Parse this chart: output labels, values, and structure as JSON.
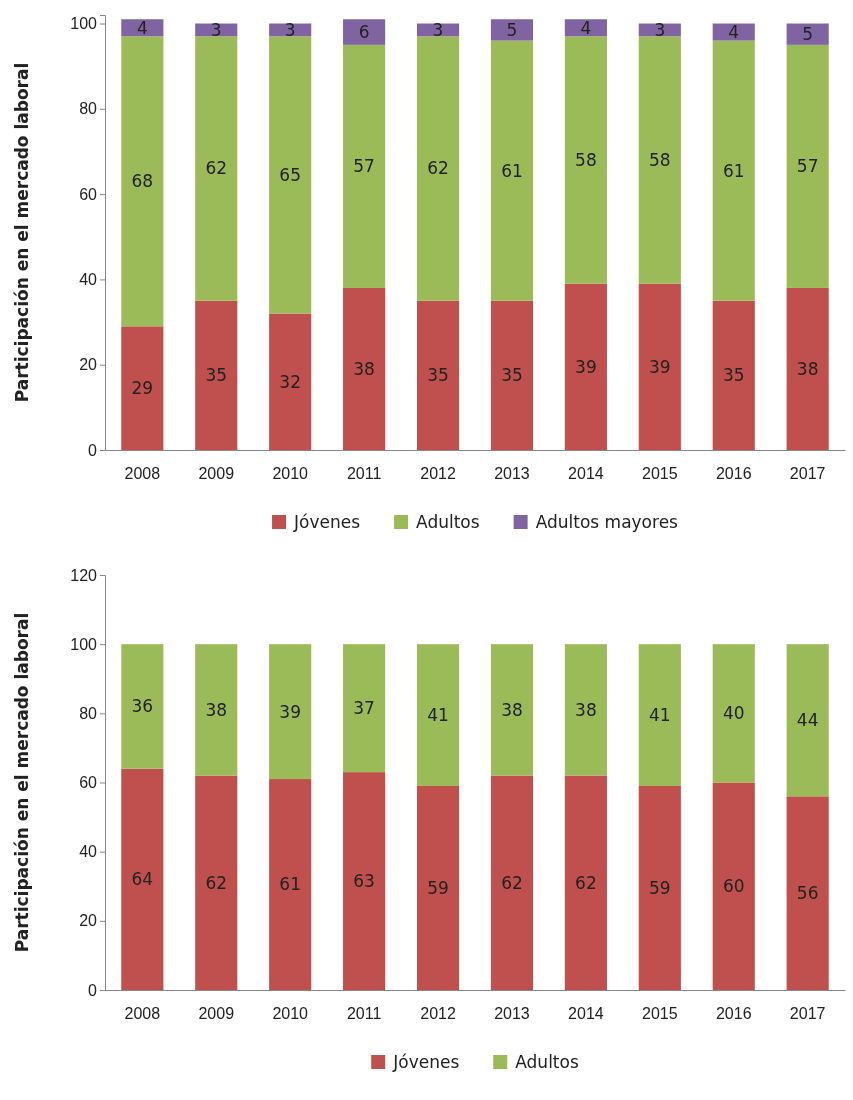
{
  "chart_data": [
    {
      "type": "bar",
      "stacked": true,
      "ylabel": "Participación  en el mercado laboral",
      "categories": [
        "2008",
        "2009",
        "2010",
        "2011",
        "2012",
        "2013",
        "2014",
        "2015",
        "2016",
        "2017"
      ],
      "ylim": [
        0,
        102
      ],
      "yticks": [
        0,
        20,
        40,
        60,
        80,
        100
      ],
      "grid": false,
      "legend": "bottom",
      "data_labels": true,
      "series": [
        {
          "name": "Jóvenes",
          "color": "#c0504d",
          "values": [
            29,
            35,
            32,
            38,
            35,
            35,
            39,
            39,
            35,
            38
          ]
        },
        {
          "name": "Adultos",
          "color": "#9bbb59",
          "values": [
            68,
            62,
            65,
            57,
            62,
            61,
            58,
            58,
            61,
            57
          ]
        },
        {
          "name": "Adultos mayores",
          "color": "#8064a2",
          "values": [
            4,
            3,
            3,
            6,
            3,
            5,
            4,
            3,
            4,
            5
          ]
        }
      ]
    },
    {
      "type": "bar",
      "stacked": true,
      "ylabel": "Participación  en el mercado laboral",
      "categories": [
        "2008",
        "2009",
        "2010",
        "2011",
        "2012",
        "2013",
        "2014",
        "2015",
        "2016",
        "2017"
      ],
      "ylim": [
        0,
        120
      ],
      "yticks": [
        0,
        20,
        40,
        60,
        80,
        100,
        120
      ],
      "grid": false,
      "legend": "bottom",
      "data_labels": true,
      "series": [
        {
          "name": "Jóvenes",
          "color": "#c0504d",
          "values": [
            64,
            62,
            61,
            63,
            59,
            62,
            62,
            59,
            60,
            56
          ]
        },
        {
          "name": "Adultos",
          "color": "#9bbb59",
          "values": [
            36,
            38,
            39,
            37,
            41,
            38,
            38,
            41,
            40,
            44
          ]
        }
      ]
    }
  ]
}
